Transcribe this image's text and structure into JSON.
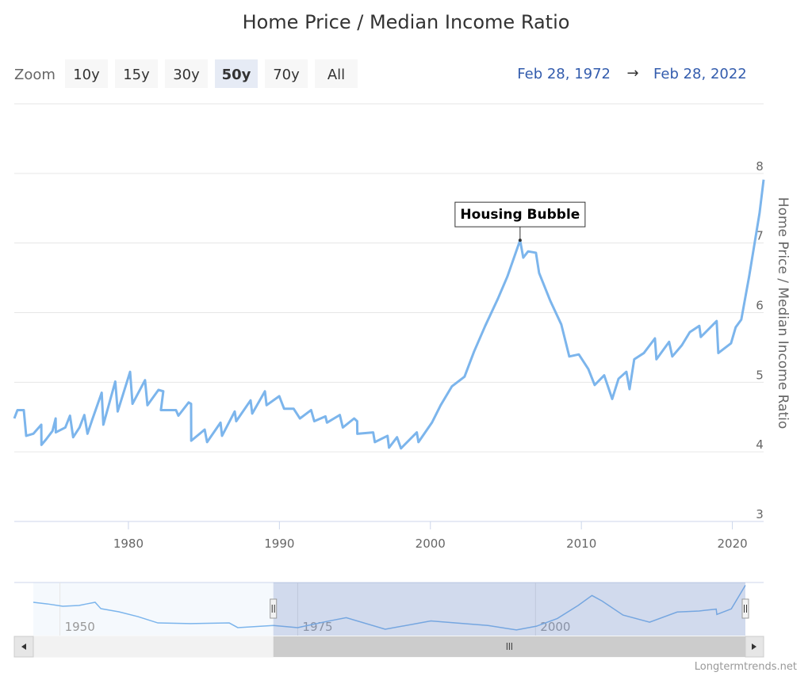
{
  "range_selector": {
    "label": "Zoom",
    "buttons": [
      "10y",
      "15y",
      "30y",
      "50y",
      "70y",
      "All"
    ],
    "selected": 3,
    "from": "Feb 28, 1972",
    "separator": "→",
    "to": "Feb 28, 2022"
  },
  "credit": "Longtermtrends.net",
  "chart_data": [
    {
      "type": "line",
      "title": "Home Price / Median Income Ratio",
      "y_axis_label": "Home Price / Median Income Ratio",
      "xlim": [
        1972.44,
        2022.07
      ],
      "xticks": [
        1980,
        1990,
        2000,
        2010,
        2020
      ],
      "ylim": [
        3,
        9
      ],
      "yticks": [
        3,
        4,
        5,
        6,
        7,
        8
      ],
      "grid": true,
      "x": [
        1972.44,
        1972.65,
        1973.07,
        1973.23,
        1973.7,
        1974.23,
        1974.24,
        1974.55,
        1974.97,
        1975.18,
        1975.19,
        1975.82,
        1976.13,
        1976.34,
        1976.76,
        1977.08,
        1977.29,
        1977.6,
        1978.23,
        1978.34,
        1979.13,
        1979.29,
        1980.11,
        1980.27,
        1981.1,
        1981.26,
        1981.99,
        1982.31,
        1982.15,
        1983.15,
        1983.31,
        1983.99,
        1984.15,
        1984.16,
        1985.05,
        1985.21,
        1986.1,
        1986.2,
        1987.04,
        1987.14,
        1988.09,
        1988.2,
        1989.04,
        1989.15,
        1989.99,
        1990.31,
        1990.94,
        1991.36,
        1992.1,
        1992.31,
        1993.05,
        1993.15,
        1994.0,
        1994.2,
        1994.95,
        1995.15,
        1995.16,
        1996.21,
        1996.32,
        1997.16,
        1997.26,
        1997.79,
        1998.05,
        1999.1,
        1999.21,
        2000.1,
        2000.68,
        2001.42,
        2002.26,
        2002.89,
        2003.63,
        2004.47,
        2005.1,
        2005.94,
        2006.15,
        2006.47,
        2006.99,
        2007.2,
        2007.94,
        2008.67,
        2009.2,
        2009.83,
        2010.46,
        2010.88,
        2011.51,
        2012.04,
        2012.46,
        2012.98,
        2013.19,
        2013.5,
        2014.14,
        2014.87,
        2014.97,
        2015.81,
        2016.02,
        2016.65,
        2017.18,
        2017.81,
        2017.91,
        2018.96,
        2019.07,
        2019.91,
        2020.22,
        2020.59,
        2021.11,
        2021.8,
        2022.07
      ],
      "series": [
        {
          "color": "#7cb5ec",
          "values": [
            4.48,
            4.6,
            4.6,
            4.23,
            4.26,
            4.39,
            4.1,
            4.18,
            4.3,
            4.48,
            4.28,
            4.35,
            4.52,
            4.21,
            4.35,
            4.53,
            4.26,
            4.46,
            4.85,
            4.39,
            5.01,
            4.58,
            5.15,
            4.69,
            5.03,
            4.67,
            4.89,
            4.87,
            4.6,
            4.6,
            4.52,
            4.71,
            4.69,
            4.16,
            4.32,
            4.14,
            4.42,
            4.23,
            4.58,
            4.44,
            4.74,
            4.55,
            4.87,
            4.67,
            4.8,
            4.62,
            4.62,
            4.48,
            4.6,
            4.44,
            4.51,
            4.42,
            4.53,
            4.35,
            4.48,
            4.44,
            4.26,
            4.28,
            4.14,
            4.23,
            4.06,
            4.21,
            4.05,
            4.28,
            4.14,
            4.42,
            4.67,
            4.94,
            5.08,
            5.44,
            5.81,
            6.2,
            6.52,
            7.04,
            6.79,
            6.88,
            6.86,
            6.57,
            6.17,
            5.83,
            5.37,
            5.4,
            5.19,
            4.96,
            5.1,
            4.76,
            5.05,
            5.15,
            4.9,
            5.33,
            5.42,
            5.63,
            5.33,
            5.58,
            5.37,
            5.53,
            5.72,
            5.81,
            5.65,
            5.88,
            5.42,
            5.56,
            5.79,
            5.9,
            6.52,
            7.43,
            7.91
          ]
        }
      ],
      "annotation": {
        "text": "Housing Bubble",
        "x": 2005.94,
        "y": 7.04
      }
    },
    {
      "type": "navigator",
      "xlim": [
        1947.2,
        2022.07
      ],
      "xticks": [
        1950,
        1975,
        2000
      ],
      "ylim": [
        3.62,
        8.15
      ],
      "x": [
        1947.2,
        1948.7,
        1950.3,
        1952.0,
        1952.8,
        1953.7,
        1954.3,
        1956.2,
        1958.2,
        1960.3,
        1963.7,
        1967.8,
        1968.7,
        1972.44,
        1975.0,
        1978.2,
        1980.1,
        1984.2,
        1989.0,
        1990.0,
        1995.0,
        1998.0,
        2000.1,
        2002.3,
        2004.5,
        2005.94,
        2007.0,
        2009.2,
        2012.0,
        2014.9,
        2017.2,
        2019.0,
        2019.07,
        2020.59,
        2022.07
      ],
      "series": [
        {
          "color": "#7cb5ec",
          "values": [
            6.46,
            6.32,
            6.12,
            6.19,
            6.32,
            6.46,
            5.92,
            5.65,
            5.24,
            4.7,
            4.64,
            4.7,
            4.3,
            4.48,
            4.3,
            4.85,
            5.15,
            4.16,
            4.87,
            4.8,
            4.48,
            4.1,
            4.42,
            5.08,
            6.2,
            7.04,
            6.57,
            5.37,
            4.76,
            5.63,
            5.72,
            5.88,
            5.42,
            5.9,
            7.91
          ]
        }
      ]
    }
  ]
}
